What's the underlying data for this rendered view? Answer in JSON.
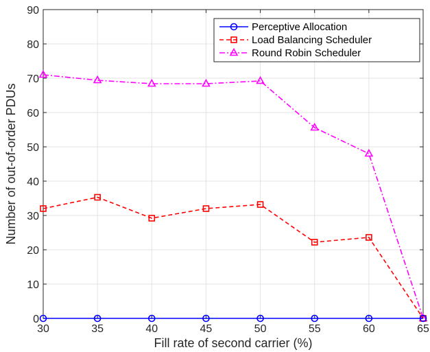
{
  "chart_data": {
    "type": "line",
    "title": "",
    "xlabel": "Fill rate of second carrier (%)",
    "ylabel": "Number of out-of-order PDUs",
    "x": [
      30,
      35,
      40,
      45,
      50,
      55,
      60,
      65
    ],
    "xlim": [
      30,
      65
    ],
    "ylim": [
      0,
      90
    ],
    "xticks": [
      30,
      35,
      40,
      45,
      50,
      55,
      60,
      65
    ],
    "yticks": [
      0,
      10,
      20,
      30,
      40,
      50,
      60,
      70,
      80,
      90
    ],
    "grid": true,
    "legend_position": "top-right",
    "series": [
      {
        "name": "Perceptive Allocation",
        "values": [
          0,
          0,
          0,
          0,
          0,
          0,
          0,
          0
        ],
        "color": "#0000ff",
        "line_style": "solid",
        "marker": "circle"
      },
      {
        "name": "Load Balancing Scheduler",
        "values": [
          32,
          35.3,
          29.2,
          32,
          33.2,
          22.2,
          23.6,
          0
        ],
        "color": "#ff0000",
        "line_style": "dashed",
        "marker": "square"
      },
      {
        "name": "Round Robin Scheduler",
        "values": [
          71,
          69.4,
          68.4,
          68.4,
          69.2,
          55.6,
          48,
          0
        ],
        "color": "#ff00ff",
        "line_style": "dash-dot",
        "marker": "triangle"
      }
    ]
  }
}
